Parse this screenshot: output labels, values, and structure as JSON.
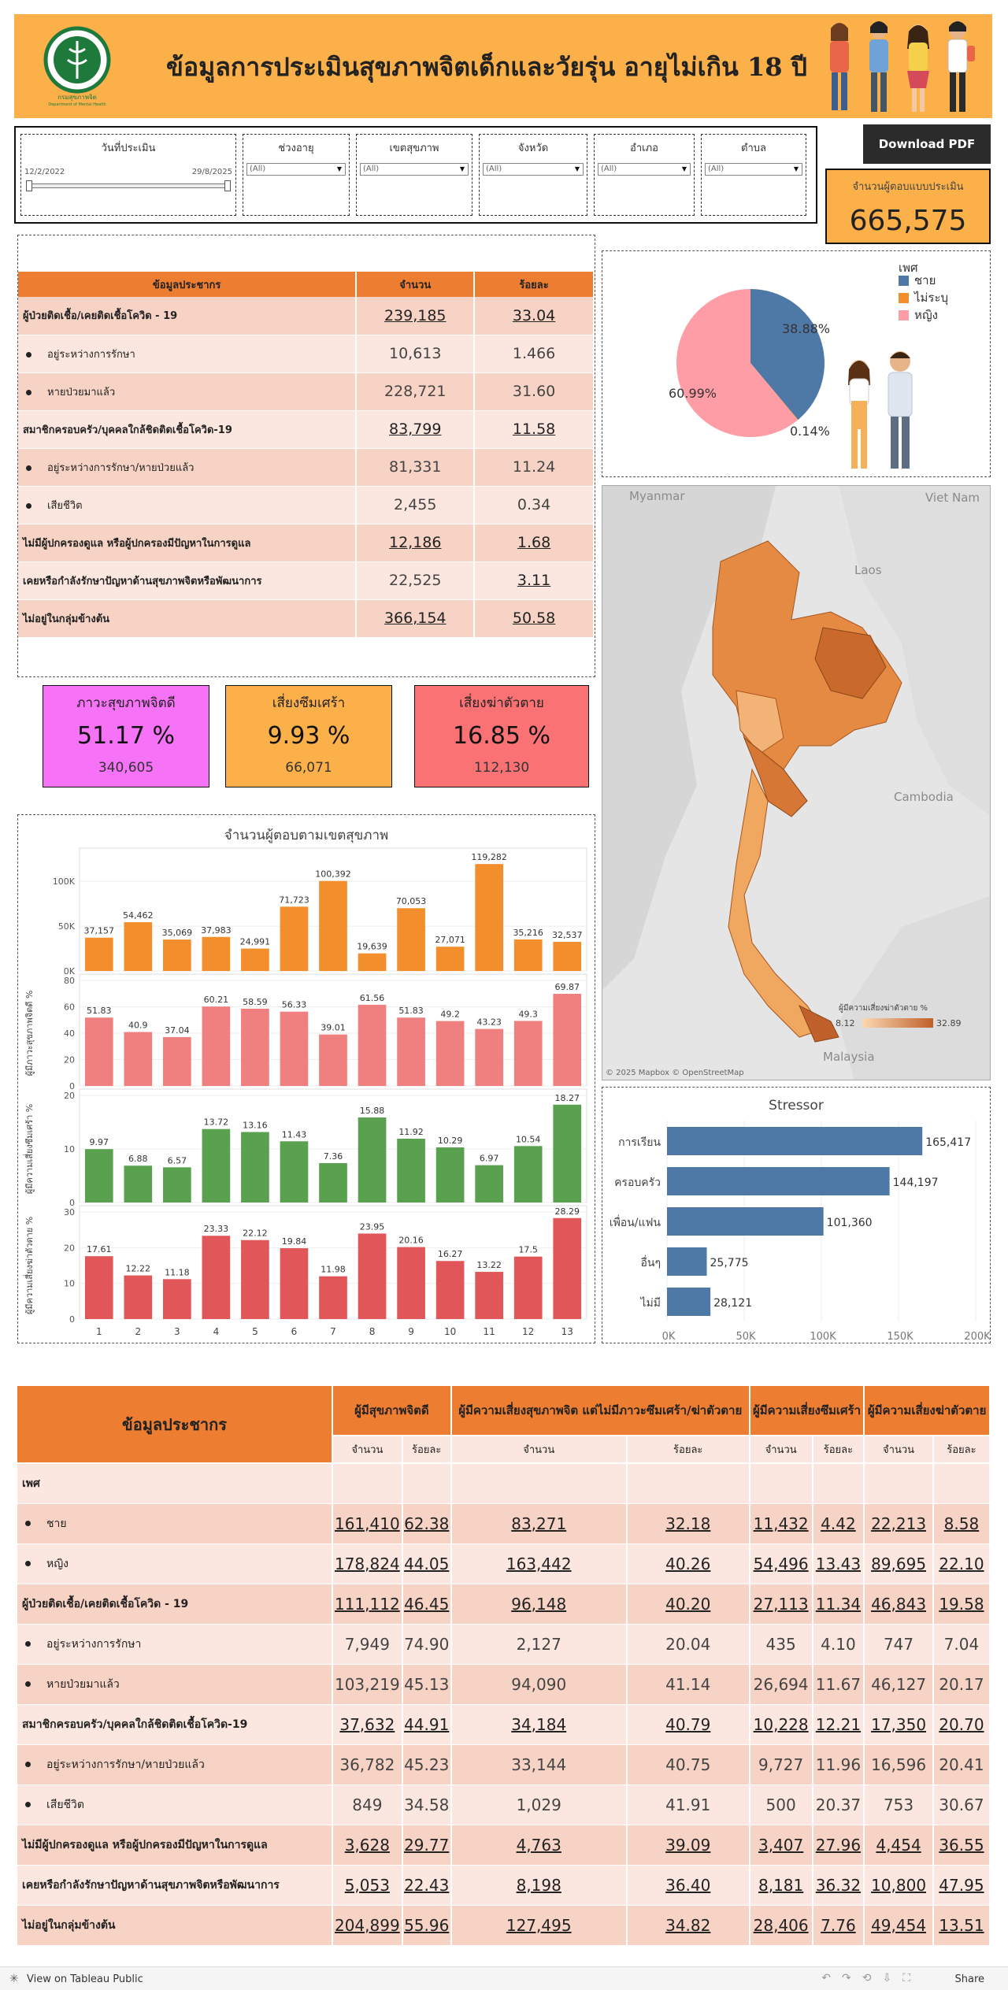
{
  "header": {
    "title": "ข้อมูลการประเมินสุขภาพจิตเด็กและวัยรุ่น อายุไม่เกิน 18 ปี",
    "logo_text_top": "กรมสุขภาพจิต",
    "logo_text_bottom": "Department of Mental Health"
  },
  "filters": {
    "date_label": "วันที่ประเมิน",
    "date_min": "12/2/2022",
    "date_max": "29/8/2025",
    "items": [
      {
        "label": "ช่วงอายุ",
        "value": "(All)"
      },
      {
        "label": "เขตสุขภาพ",
        "value": "(All)"
      },
      {
        "label": "จังหวัด",
        "value": "(All)"
      },
      {
        "label": "อำเภอ",
        "value": "(All)"
      },
      {
        "label": "ตำบล",
        "value": "(All)"
      }
    ]
  },
  "download_label": "Download PDF",
  "respondents": {
    "label": "จำนวนผู้ตอบแบบประเมิน",
    "value": "665,575"
  },
  "demo_table": {
    "headers": [
      "ข้อมูลประชากร",
      "จำนวน",
      "ร้อยละ"
    ],
    "rows": [
      {
        "label": "ผู้ป่วยติดเชื้อ/เคยติดเชื้อโควิด - 19",
        "count": "239,185",
        "pct": "33.04",
        "sub": false
      },
      {
        "label": "อยู่ระหว่างการรักษา",
        "count": "10,613",
        "pct": "1.466",
        "sub": true
      },
      {
        "label": "หายป่วยมาแล้ว",
        "count": "228,721",
        "pct": "31.60",
        "sub": true
      },
      {
        "label": "สมาชิกครอบครัว/บุคคลใกล้ชิดติดเชื้อโควิด-19",
        "count": "83,799",
        "pct": "11.58",
        "sub": false
      },
      {
        "label": "อยู่ระหว่างการรักษา/หายป่วยแล้ว",
        "count": "81,331",
        "pct": "11.24",
        "sub": true
      },
      {
        "label": "เสียชีวิต",
        "count": "2,455",
        "pct": "0.34",
        "sub": true
      },
      {
        "label": "ไม่มีผู้ปกครองดูแล หรือผู้ปกครองมีปัญหาในการดูแล",
        "count": "12,186",
        "pct": "1.68",
        "sub": false
      },
      {
        "label": "เคยหรือกำลังรักษาปัญหาด้านสุขภาพจิตหรือพัฒนาการ",
        "count": "22,525",
        "pct": "3.11",
        "sub": false
      },
      {
        "label": "ไม่อยู่ในกลุ่มข้างต้น",
        "count": "366,154",
        "pct": "50.58",
        "sub": false
      }
    ]
  },
  "kpis": [
    {
      "label": "ภาวะสุขภาพจิตดี",
      "value": "51.17  %",
      "count": "340,605",
      "color": "#f672f6"
    },
    {
      "label": "เสี่ยงซึมเศร้า",
      "value": "9.93  %",
      "count": "66,071",
      "color": "#fbb04a"
    },
    {
      "label": "เสี่ยงฆ่าตัวตาย",
      "value": "16.85  %",
      "count": "112,130",
      "color": "#fb7274"
    }
  ],
  "gender": {
    "legend_title": "เพศ",
    "items": [
      {
        "name": "ชาย",
        "pct": 38.88,
        "label": "38.88%",
        "color": "#4e79a7"
      },
      {
        "name": "ไม่ระบุ",
        "pct": 0.14,
        "label": "0.14%",
        "color": "#f28e2b"
      },
      {
        "name": "หญิง",
        "pct": 60.99,
        "label": "60.99%",
        "color": "#ff9da7"
      }
    ]
  },
  "map": {
    "labels": [
      "Myanmar",
      "Viet Nam",
      "Laos",
      "Cambodia",
      "Malaysia"
    ],
    "legend_title": "ผู้มีความเสี่ยงฆ่าตัวตาย %",
    "legend_min": "8.12",
    "legend_max": "32.89",
    "attribution": "© 2025 Mapbox  © OpenStreetMap"
  },
  "chart_data": [
    {
      "type": "bar",
      "title": "จำนวนผู้ตอบตามเขตสุขภาพ",
      "categories": [
        "1",
        "2",
        "3",
        "4",
        "5",
        "6",
        "7",
        "8",
        "9",
        "10",
        "11",
        "12",
        "13"
      ],
      "values": [
        37157,
        54462,
        35069,
        37983,
        24991,
        71723,
        100392,
        19639,
        70053,
        27071,
        119282,
        35216,
        32537
      ],
      "labels": [
        "37,157",
        "54,462",
        "35,069",
        "37,983",
        "24,991",
        "71,723",
        "100,392",
        "19,639",
        "70,053",
        "27,071",
        "119,282",
        "35,216",
        "32,537"
      ],
      "ylim": [
        0,
        130000
      ],
      "yticks": [
        {
          "v": 0,
          "t": "0K"
        },
        {
          "v": 50000,
          "t": "50K"
        },
        {
          "v": 100000,
          "t": "100K"
        }
      ],
      "color": "#f28e2b"
    },
    {
      "type": "bar",
      "ylabel": "ผู้มีภาวะสุขภาพจิตดี %",
      "categories": [
        "1",
        "2",
        "3",
        "4",
        "5",
        "6",
        "7",
        "8",
        "9",
        "10",
        "11",
        "12",
        "13"
      ],
      "values": [
        51.83,
        40.9,
        37.04,
        60.21,
        58.59,
        56.33,
        39.01,
        61.56,
        51.83,
        49.2,
        43.23,
        49.3,
        69.87
      ],
      "ylim": [
        0,
        80
      ],
      "yticks": [
        {
          "v": 0,
          "t": "0"
        },
        {
          "v": 20,
          "t": "20"
        },
        {
          "v": 40,
          "t": "40"
        },
        {
          "v": 60,
          "t": "60"
        },
        {
          "v": 80,
          "t": "80"
        }
      ],
      "color": "#f08080"
    },
    {
      "type": "bar",
      "ylabel": "ผู้มีความเสี่ยงซึมเศร้า %",
      "categories": [
        "1",
        "2",
        "3",
        "4",
        "5",
        "6",
        "7",
        "8",
        "9",
        "10",
        "11",
        "12",
        "13"
      ],
      "values": [
        9.97,
        6.88,
        6.57,
        13.72,
        13.16,
        11.43,
        7.36,
        15.88,
        11.92,
        10.29,
        6.97,
        10.54,
        18.27
      ],
      "ylim": [
        0,
        20
      ],
      "yticks": [
        {
          "v": 0,
          "t": "0"
        },
        {
          "v": 10,
          "t": "10"
        },
        {
          "v": 20,
          "t": "20"
        }
      ],
      "color": "#59a14f"
    },
    {
      "type": "bar",
      "ylabel": "ผู้มีความเสี่ยงฆ่าตัวตาย %",
      "categories": [
        "1",
        "2",
        "3",
        "4",
        "5",
        "6",
        "7",
        "8",
        "9",
        "10",
        "11",
        "12",
        "13"
      ],
      "values": [
        17.61,
        12.22,
        11.18,
        23.33,
        22.12,
        19.84,
        11.98,
        23.95,
        20.16,
        16.27,
        13.22,
        17.5,
        28.29
      ],
      "ylim": [
        0,
        30
      ],
      "yticks": [
        {
          "v": 0,
          "t": "0"
        },
        {
          "v": 10,
          "t": "10"
        },
        {
          "v": 20,
          "t": "20"
        },
        {
          "v": 30,
          "t": "30"
        }
      ],
      "color": "#e15759"
    },
    {
      "type": "bar",
      "orientation": "horizontal",
      "title": "Stressor",
      "categories": [
        "การเรียน",
        "ครอบครัว",
        "เพื่อน/แฟน",
        "อื่นๆ",
        "ไม่มี"
      ],
      "values": [
        165417,
        144197,
        101360,
        25775,
        28121
      ],
      "labels": [
        "165,417",
        "144,197",
        "101,360",
        "25,775",
        "28,121"
      ],
      "xlim": [
        0,
        200000
      ],
      "xticks": [
        {
          "v": 0,
          "t": "0K"
        },
        {
          "v": 50000,
          "t": "50K"
        },
        {
          "v": 100000,
          "t": "100K"
        },
        {
          "v": 150000,
          "t": "150K"
        },
        {
          "v": 200000,
          "t": "200K"
        }
      ],
      "color": "#4e79a7"
    }
  ],
  "big_table": {
    "title": "ข้อมูลประชากร",
    "groups": [
      "ผู้มีสุขภาพจิตดี",
      "ผู้มีความเสี่ยงสุขภาพจิต แต่ไม่มีภาวะซึมเศร้า/ฆ่าตัวตาย",
      "ผู้มีความเสี่ยงซึมเศร้า",
      "ผู้มีความเสี่ยงฆ่าตัวตาย"
    ],
    "sub_count": "จำนวน",
    "sub_pct": "ร้อยละ",
    "rows": [
      {
        "label": "เพศ",
        "sub": false,
        "header": true,
        "cells": [
          "",
          "",
          "",
          "",
          "",
          "",
          "",
          ""
        ]
      },
      {
        "label": "ชาย",
        "sub": true,
        "cells": [
          "161,410",
          "62.38",
          "83,271",
          "32.18",
          "11,432",
          "4.42",
          "22,213",
          "8.58"
        ],
        "u": true
      },
      {
        "label": "หญิง",
        "sub": true,
        "cells": [
          "178,824",
          "44.05",
          "163,442",
          "40.26",
          "54,496",
          "13.43",
          "89,695",
          "22.10"
        ],
        "u": true
      },
      {
        "label": "ผู้ป่วยติดเชื้อ/เคยติดเชื้อโควิด - 19",
        "sub": false,
        "cells": [
          "111,112",
          "46.45",
          "96,148",
          "40.20",
          "27,113",
          "11.34",
          "46,843",
          "19.58"
        ],
        "u": true
      },
      {
        "label": "อยู่ระหว่างการรักษา",
        "sub": true,
        "cells": [
          "7,949",
          "74.90",
          "2,127",
          "20.04",
          "435",
          "4.10",
          "747",
          "7.04"
        ],
        "u": false
      },
      {
        "label": "หายป่วยมาแล้ว",
        "sub": true,
        "cells": [
          "103,219",
          "45.13",
          "94,090",
          "41.14",
          "26,694",
          "11.67",
          "46,127",
          "20.17"
        ],
        "u": false
      },
      {
        "label": "สมาชิกครอบครัว/บุคคลใกล้ชิดติดเชื้อโควิด-19",
        "sub": false,
        "cells": [
          "37,632",
          "44.91",
          "34,184",
          "40.79",
          "10,228",
          "12.21",
          "17,350",
          "20.70"
        ],
        "u": true
      },
      {
        "label": "อยู่ระหว่างการรักษา/หายป่วยแล้ว",
        "sub": true,
        "cells": [
          "36,782",
          "45.23",
          "33,144",
          "40.75",
          "9,727",
          "11.96",
          "16,596",
          "20.41"
        ],
        "u": false
      },
      {
        "label": "เสียชีวิต",
        "sub": true,
        "cells": [
          "849",
          "34.58",
          "1,029",
          "41.91",
          "500",
          "20.37",
          "753",
          "30.67"
        ],
        "u": false
      },
      {
        "label": "ไม่มีผู้ปกครองดูแล หรือผู้ปกครองมีปัญหาในการดูแล",
        "sub": false,
        "cells": [
          "3,628",
          "29.77",
          "4,763",
          "39.09",
          "3,407",
          "27.96",
          "4,454",
          "36.55"
        ],
        "u": true
      },
      {
        "label": "เคยหรือกำลังรักษาปัญหาด้านสุขภาพจิตหรือพัฒนาการ",
        "sub": false,
        "cells": [
          "5,053",
          "22.43",
          "8,198",
          "36.40",
          "8,181",
          "36.32",
          "10,800",
          "47.95"
        ],
        "u": true
      },
      {
        "label": "ไม่อยู่ในกลุ่มข้างต้น",
        "sub": false,
        "cells": [
          "204,899",
          "55.96",
          "127,495",
          "34.82",
          "28,406",
          "7.76",
          "49,454",
          "13.51"
        ],
        "u": true
      }
    ]
  },
  "footer": {
    "link": "View on Tableau Public",
    "share": "Share"
  }
}
